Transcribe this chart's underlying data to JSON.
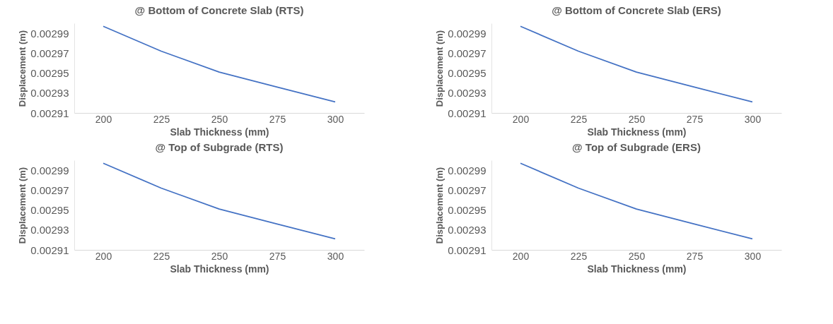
{
  "chart_data": [
    {
      "type": "line",
      "title": "@ Bottom of Concrete Slab (RTS)",
      "xlabel": "Slab Thickness (mm)",
      "ylabel": "Displacement (m)",
      "categories": [
        "200",
        "225",
        "250",
        "275",
        "300"
      ],
      "series": [
        {
          "color": "#4472c4",
          "values": [
            0.002997,
            0.002972,
            0.002951,
            0.002936,
            0.002921
          ]
        }
      ],
      "ylim": [
        0.00291,
        0.003
      ],
      "yticks": [
        0.00291,
        0.00293,
        0.00295,
        0.00297,
        0.00299
      ],
      "grid": false,
      "legend": false,
      "marker": "none"
    },
    {
      "type": "line",
      "title": "@ Bottom of Concrete Slab (ERS)",
      "xlabel": "Slab Thickness (mm)",
      "ylabel": "Displacement (m)",
      "categories": [
        "200",
        "225",
        "250",
        "275",
        "300"
      ],
      "series": [
        {
          "color": "#4472c4",
          "values": [
            0.002997,
            0.002972,
            0.002951,
            0.002936,
            0.002921
          ]
        }
      ],
      "ylim": [
        0.00291,
        0.003
      ],
      "yticks": [
        0.00291,
        0.00293,
        0.00295,
        0.00297,
        0.00299
      ],
      "grid": false,
      "legend": false,
      "marker": "none"
    },
    {
      "type": "line",
      "title": "@ Top of Subgrade (RTS)",
      "xlabel": "Slab Thickness (mm)",
      "ylabel": "Displacement (m)",
      "categories": [
        "200",
        "225",
        "250",
        "275",
        "300"
      ],
      "series": [
        {
          "color": "#4472c4",
          "values": [
            0.002997,
            0.002972,
            0.002951,
            0.002936,
            0.002921
          ]
        }
      ],
      "ylim": [
        0.00291,
        0.003
      ],
      "yticks": [
        0.00291,
        0.00293,
        0.00295,
        0.00297,
        0.00299
      ],
      "grid": false,
      "legend": false,
      "marker": "none"
    },
    {
      "type": "line",
      "title": "@ Top of Subgrade (ERS)",
      "xlabel": "Slab Thickness (mm)",
      "ylabel": "Displacement (m)",
      "categories": [
        "200",
        "225",
        "250",
        "275",
        "300"
      ],
      "series": [
        {
          "color": "#4472c4",
          "values": [
            0.002997,
            0.002972,
            0.002951,
            0.002936,
            0.002921
          ]
        }
      ],
      "ylim": [
        0.00291,
        0.003
      ],
      "yticks": [
        0.00291,
        0.00293,
        0.00295,
        0.00297,
        0.00299
      ],
      "grid": false,
      "legend": false,
      "marker": "none"
    }
  ]
}
